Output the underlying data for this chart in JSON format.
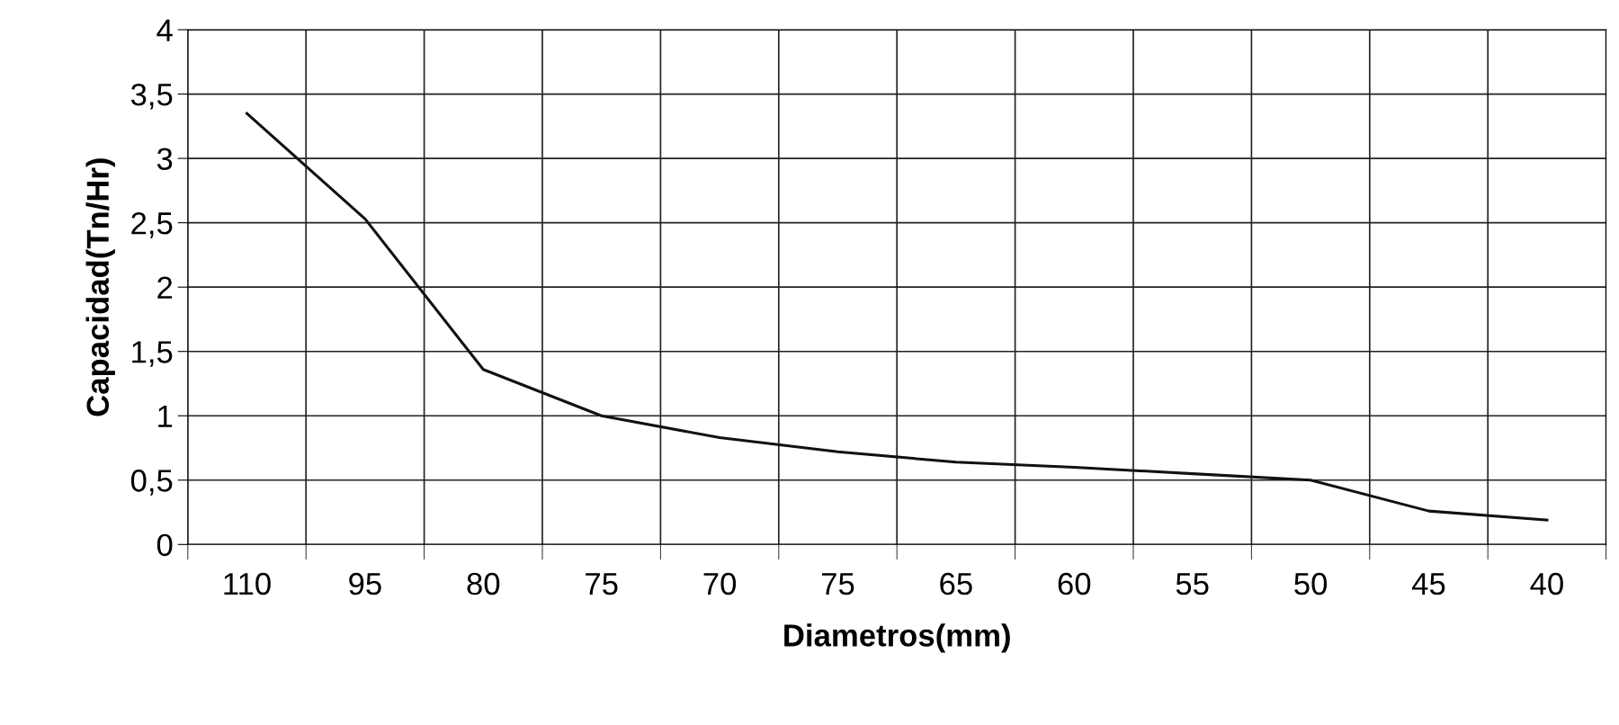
{
  "chart_data": {
    "type": "line",
    "xlabel": "Diametros(mm)",
    "ylabel": "Capacidad(Tn/Hr)",
    "categories": [
      "110",
      "95",
      "80",
      "75",
      "70",
      "75",
      "65",
      "60",
      "55",
      "50",
      "45",
      "40"
    ],
    "series": [
      {
        "color": "#111111",
        "values": [
          3.35,
          2.53,
          1.36,
          1.0,
          0.83,
          0.72,
          0.64,
          0.6,
          0.55,
          0.5,
          0.26,
          0.19
        ]
      }
    ],
    "ylim": [
      0,
      4
    ],
    "yticks": [
      0,
      {
        "value": 0.5,
        "label": "0,5"
      },
      1,
      {
        "value": 1.5,
        "label": "1,5"
      },
      2,
      {
        "value": 2.5,
        "label": "2,5"
      },
      3,
      {
        "value": 3.5,
        "label": "3,5"
      },
      4
    ],
    "grid": true,
    "marker": "none",
    "line_style": "solid",
    "legend": false
  }
}
